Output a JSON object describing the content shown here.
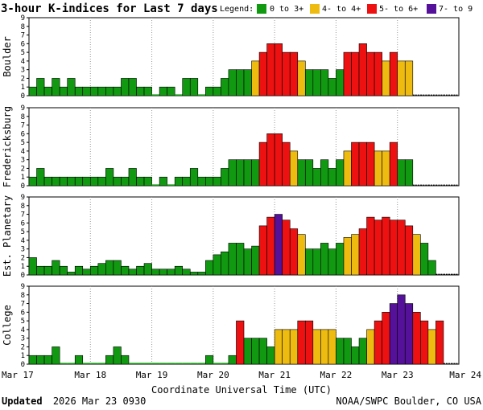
{
  "title": "3-hour K-indices for Last 7 days",
  "legend": {
    "label": "Legend:",
    "items": [
      {
        "text": "0 to 3+",
        "color": "#119911"
      },
      {
        "text": "4- to 4+",
        "color": "#eebb11"
      },
      {
        "text": "5- to 6+",
        "color": "#ee1111"
      },
      {
        "text": "7- to 9",
        "color": "#551199"
      }
    ]
  },
  "xlabel": "Coordinate Universal Time (UTC)",
  "footer": {
    "updated_label": "Updated",
    "updated_value": "2026 Mar 23 0930",
    "source": "NOAA/SWPC Boulder, CO USA"
  },
  "chart_data": {
    "type": "bar",
    "x_tick_labels": [
      "Mar 17",
      "Mar 18",
      "Mar 19",
      "Mar 20",
      "Mar 21",
      "Mar 22",
      "Mar 23",
      "Mar 24"
    ],
    "bins_per_day": 8,
    "ylim": [
      0,
      9
    ],
    "y_ticks": [
      0,
      1,
      2,
      3,
      4,
      5,
      6,
      7,
      8,
      9
    ],
    "color_scale": [
      {
        "max": 3.9,
        "color": "#119911"
      },
      {
        "max": 4.9,
        "color": "#eebb11"
      },
      {
        "max": 6.9,
        "color": "#ee1111"
      },
      {
        "max": 9,
        "color": "#551199"
      }
    ],
    "panels": [
      {
        "name": "Boulder",
        "values": [
          1,
          2,
          1,
          2,
          1,
          2,
          1,
          1,
          1,
          1,
          1,
          1,
          2,
          2,
          1,
          1,
          0,
          1,
          1,
          0,
          2,
          2,
          0,
          1,
          1,
          2,
          3,
          3,
          3,
          4,
          5,
          6,
          6,
          5,
          5,
          4,
          3,
          3,
          3,
          2,
          3,
          5,
          5,
          6,
          5,
          5,
          4,
          5,
          4,
          4
        ]
      },
      {
        "name": "Fredericksburg",
        "values": [
          1,
          2,
          1,
          1,
          1,
          1,
          1,
          1,
          1,
          1,
          2,
          1,
          1,
          2,
          1,
          1,
          0,
          1,
          0,
          1,
          1,
          2,
          1,
          1,
          1,
          2,
          3,
          3,
          3,
          3,
          5,
          6,
          6,
          5,
          4,
          3,
          3,
          2,
          3,
          2,
          3,
          4,
          5,
          5,
          5,
          4,
          4,
          5,
          3,
          3
        ]
      },
      {
        "name": "Est. Planetary",
        "values": [
          2,
          1,
          1,
          1.67,
          1,
          0.33,
          1,
          0.67,
          1,
          1.33,
          1.67,
          1.67,
          1,
          0.67,
          1,
          1.33,
          0.67,
          0.67,
          0.67,
          1,
          0.67,
          0.33,
          0.33,
          1.67,
          2.33,
          2.67,
          3.67,
          3.67,
          3,
          3.33,
          5.67,
          6.67,
          7,
          6.33,
          5.33,
          4.67,
          3,
          3,
          3.67,
          3,
          3.67,
          4.33,
          4.67,
          5.33,
          6.67,
          6.33,
          6.67,
          6.33,
          6.33,
          5.67,
          4.67,
          3.67,
          1.67
        ]
      },
      {
        "name": "College",
        "values": [
          1,
          1,
          1,
          2,
          0,
          0,
          1,
          0,
          0,
          0,
          1,
          2,
          1,
          0,
          0,
          0,
          0,
          0,
          0,
          0,
          0,
          0,
          0,
          1,
          0,
          0,
          1,
          5,
          3,
          3,
          3,
          2,
          4,
          4,
          4,
          5,
          5,
          4,
          4,
          4,
          3,
          3,
          2,
          3,
          4,
          5,
          6,
          7,
          8,
          7,
          6,
          5,
          4,
          5
        ]
      }
    ]
  }
}
